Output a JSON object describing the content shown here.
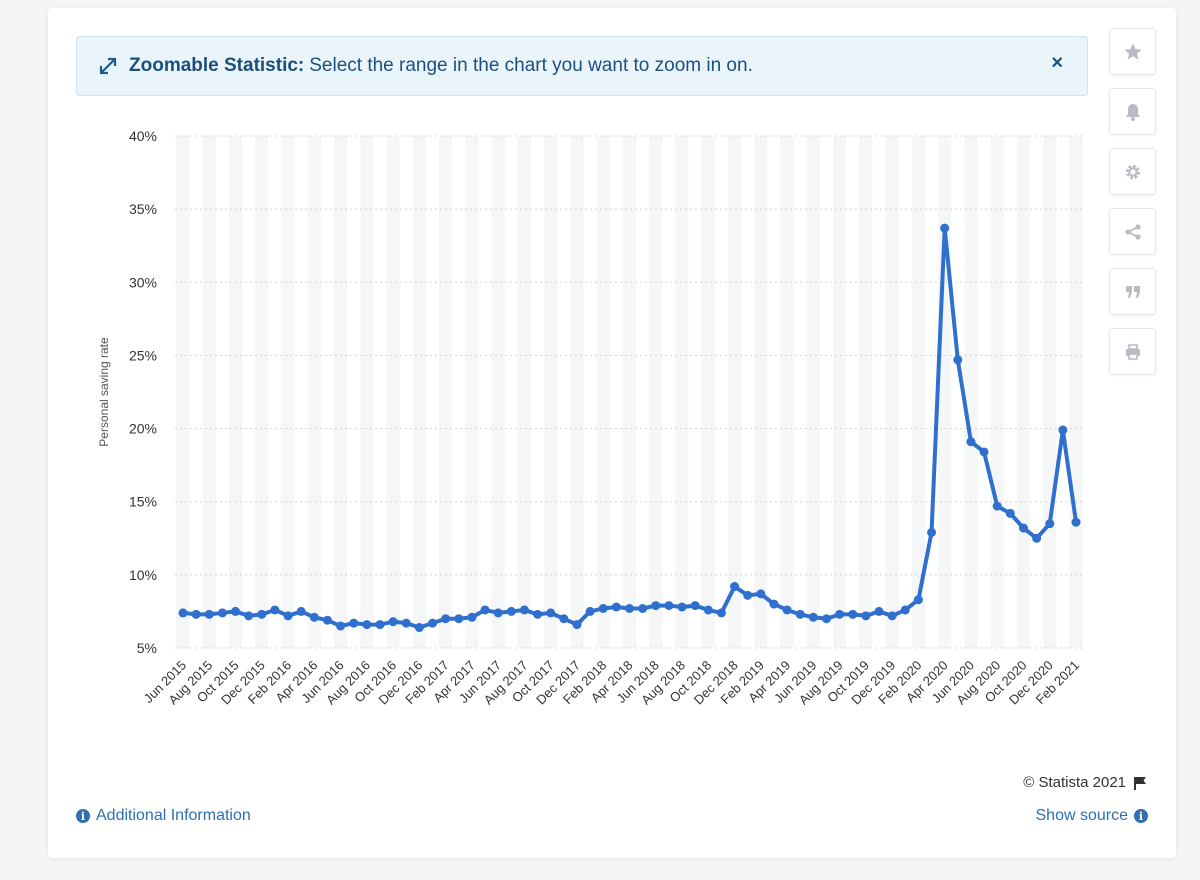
{
  "banner": {
    "title_strong": "Zoomable Statistic:",
    "title_text": "Select the range in the chart you want to zoom in on.",
    "close_label": "×"
  },
  "side_toolbar": [
    "star-icon",
    "bell-icon",
    "gear-icon",
    "share-icon",
    "quote-icon",
    "print-icon"
  ],
  "footer": {
    "copyright": "© Statista 2021",
    "additional_info": "Additional Information",
    "show_source": "Show source"
  },
  "colors": {
    "line": "#2f6fce",
    "accent": "#2f6fb2",
    "band": "#f5f6f7"
  },
  "chart_data": {
    "type": "line",
    "title": "",
    "xlabel": "",
    "ylabel": "Personal saving rate",
    "ylim": [
      5,
      40
    ],
    "yticks": [
      5,
      10,
      15,
      20,
      25,
      30,
      35,
      40
    ],
    "ytick_suffix": "%",
    "grid": true,
    "xtick_labels": [
      "Jun 2015",
      "Aug 2015",
      "Oct 2015",
      "Dec 2015",
      "Feb 2016",
      "Apr 2016",
      "Jun 2016",
      "Aug 2016",
      "Oct 2016",
      "Dec 2016",
      "Feb 2017",
      "Apr 2017",
      "Jun 2017",
      "Aug 2017",
      "Oct 2017",
      "Dec 2017",
      "Feb 2018",
      "Apr 2018",
      "Jun 2018",
      "Aug 2018",
      "Oct 2018",
      "Dec 2018",
      "Feb 2019",
      "Apr 2019",
      "Jun 2019",
      "Aug 2019",
      "Oct 2019",
      "Dec 2019",
      "Feb 2020",
      "Apr 2020",
      "Jun 2020",
      "Aug 2020",
      "Oct 2020",
      "Dec 2020",
      "Feb 2021"
    ],
    "series": [
      {
        "values": [
          7.4,
          7.3,
          7.3,
          7.4,
          7.5,
          7.2,
          7.3,
          7.6,
          7.2,
          7.5,
          7.1,
          6.9,
          6.5,
          6.7,
          6.6,
          6.6,
          6.8,
          6.7,
          6.4,
          6.7,
          7.0,
          7.0,
          7.1,
          7.6,
          7.4,
          7.5,
          7.6,
          7.3,
          7.4,
          7.0,
          6.6,
          7.5,
          7.7,
          7.8,
          7.7,
          7.7,
          7.9,
          7.9,
          7.8,
          7.9,
          7.6,
          7.4,
          9.2,
          8.6,
          8.7,
          8.0,
          7.6,
          7.3,
          7.1,
          7.0,
          7.3,
          7.3,
          7.2,
          7.5,
          7.2,
          7.6,
          8.3,
          12.9,
          33.7,
          24.7,
          19.1,
          18.4,
          14.7,
          14.2,
          13.2,
          12.5,
          13.5,
          19.9,
          13.6
        ]
      }
    ]
  }
}
